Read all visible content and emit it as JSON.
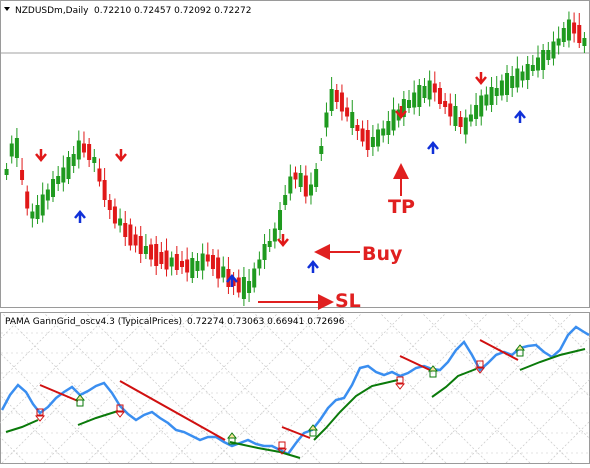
{
  "main_chart": {
    "symbol_label": "NZDUSDm,Daily",
    "ohlc_values": "0.72210 0.72457 0.72092 0.72272",
    "colors": {
      "bull": "#1f9a1f",
      "bear": "#e01818",
      "buy_arrow": "#1030d8",
      "sell_arrow": "#e01818",
      "annotation": "#e02020",
      "price_line": "#a0a0a0"
    },
    "annotations": {
      "buy": "Buy",
      "sell_stop": "SL",
      "take_profit": "TP"
    }
  },
  "indicator_panel": {
    "title": "PAMA GannGrid_oscv4.3  (TypicalPrices)",
    "values": "0.72274 0.73063 0.66941 0.72696",
    "colors": {
      "oscillator": "#3a8ef0",
      "up_line": "#0a7a0a",
      "down_line": "#d01010",
      "grid": "#c8c8c8"
    }
  },
  "icons": {
    "chart_menu": "triangle-down-icon",
    "buy_signal": "blue-up-arrow-icon",
    "sell_signal": "red-down-arrow-icon",
    "annotation_arrow": "red-arrow-icon"
  }
}
